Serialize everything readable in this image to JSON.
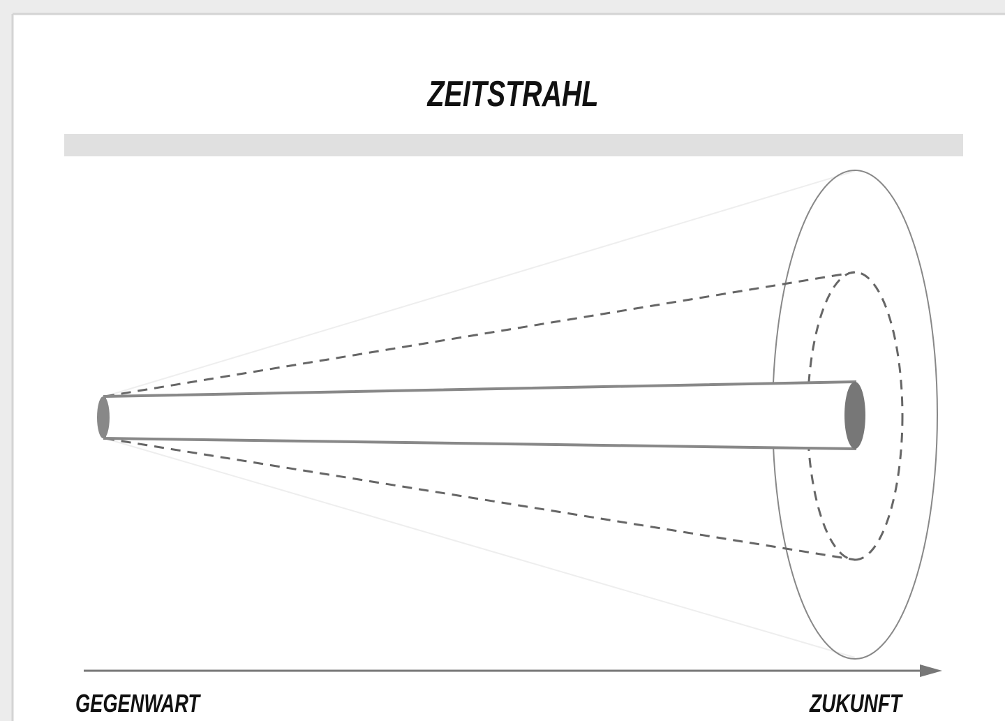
{
  "title": "ZEITSTRAHL",
  "labels": {
    "start": "GEGENWART",
    "end": "ZUKUNFT"
  }
}
